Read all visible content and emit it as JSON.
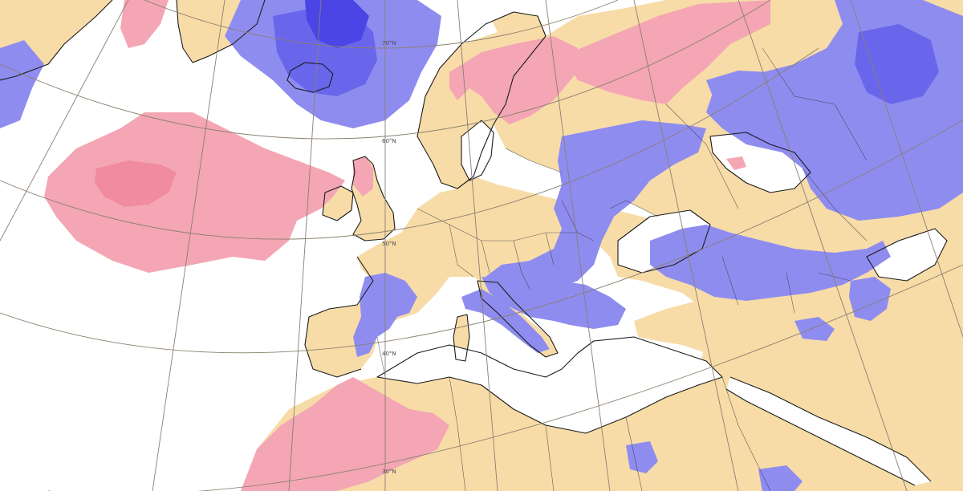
{
  "map": {
    "colors": {
      "background": "#ffffff",
      "near_normal_land": "#f7dca8",
      "above_normal": "#f4a6b4",
      "above_normal_strong": "#f08ba0",
      "below_normal": "#8f8cf0",
      "below_normal_strong": "#6a66ec",
      "below_normal_extreme": "#4b45e6",
      "coastline": "#1a1a1a",
      "graticule": "#8a7f6e"
    },
    "latitude_labels": {
      "lat70": "70°N",
      "lat60": "60°N",
      "lat50": "50°N",
      "lat40": "40°N",
      "lat30": "30°N"
    }
  }
}
